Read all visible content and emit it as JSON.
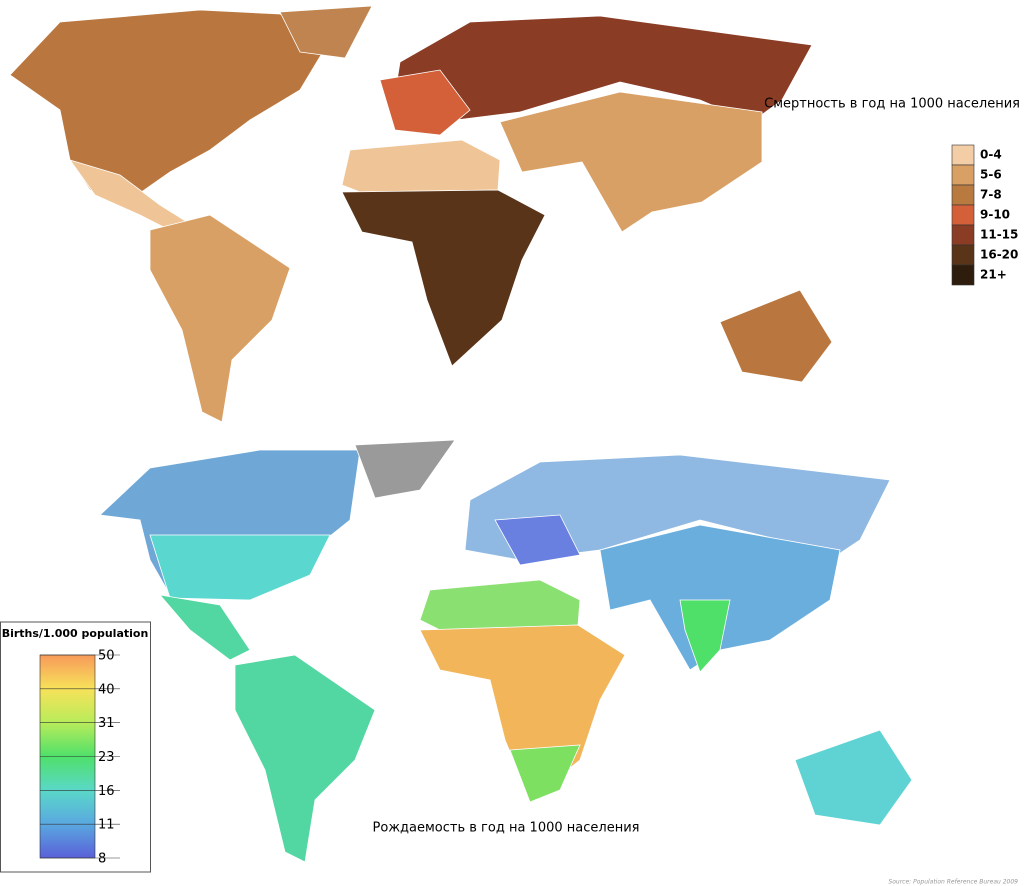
{
  "death_map": {
    "title": "Смертность в год на 1000 населения",
    "legend": [
      {
        "label": "0-4",
        "color": "#f3cda6"
      },
      {
        "label": "5-6",
        "color": "#d9a065"
      },
      {
        "label": "7-8",
        "color": "#b97a40"
      },
      {
        "label": "9-10",
        "color": "#d4603a"
      },
      {
        "label": "11-15",
        "color": "#8b3c25"
      },
      {
        "label": "16-20",
        "color": "#5a3418"
      },
      {
        "label": "21+",
        "color": "#2e1d0d"
      }
    ]
  },
  "birth_map": {
    "title": "Рождаемость в год на 1000 населения",
    "legend": {
      "title": "Births/1.000 population",
      "ticks": [
        "50",
        "40",
        "31",
        "23",
        "16",
        "11",
        "8"
      ],
      "colors": [
        "#f79a5a",
        "#f7e25a",
        "#b8ec5a",
        "#4fe06a",
        "#5ad8c8",
        "#5aa8e0",
        "#5a60d8"
      ]
    },
    "source": "Source: Population Reference Bureau 2009"
  }
}
